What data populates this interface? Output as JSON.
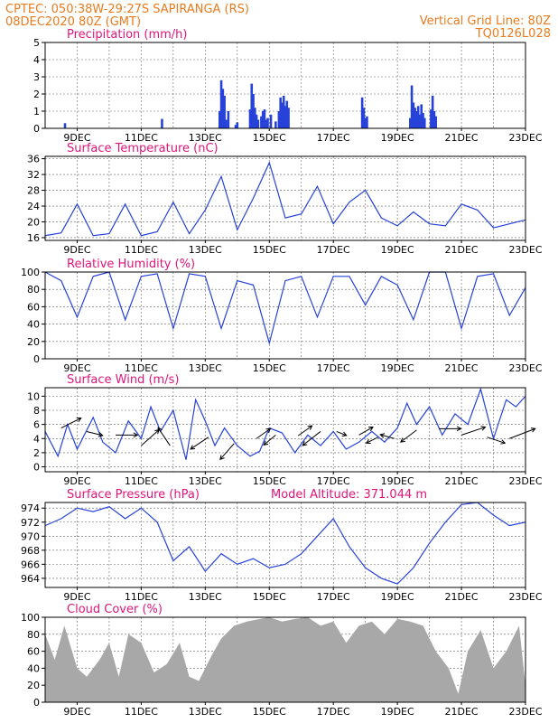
{
  "header": {
    "line1_left": "CPTEC:   050:38W-29:27S  SAPIRANGA (RS)",
    "line2_left": "08DEC2020 80Z (GMT)",
    "line1_right": "Vertical Grid Line: 80Z",
    "line2_right": "TQ0126L028"
  },
  "colors": {
    "header": "#e87b1e",
    "panel_title": "#e0157a",
    "series": "#2742d9",
    "cloud_fill": "#a8a8a8",
    "wind_arrow": "#000000"
  },
  "x_axis": {
    "date_labels": [
      "9DEC",
      "11DEC",
      "13DEC",
      "15DEC",
      "17DEC",
      "19DEC",
      "21DEC",
      "23DEC"
    ],
    "label_day_index": [
      1,
      3,
      5,
      7,
      9,
      11,
      13,
      15
    ],
    "day_range": [
      0.0,
      15.0
    ]
  },
  "chart_data": [
    {
      "id": "precip",
      "type": "bar",
      "title": "Precipitation (mm/h)",
      "ylim": [
        0,
        5
      ],
      "yticks": [
        "0",
        "1",
        "2",
        "3",
        "4",
        "5"
      ],
      "grid": true,
      "bars": [
        [
          0.62,
          0.3
        ],
        [
          3.65,
          0.55
        ],
        [
          5.45,
          1.0
        ],
        [
          5.5,
          2.8
        ],
        [
          5.55,
          2.3
        ],
        [
          5.6,
          1.9
        ],
        [
          5.65,
          0.5
        ],
        [
          5.72,
          1.0
        ],
        [
          5.95,
          0.2
        ],
        [
          6.0,
          0.35
        ],
        [
          6.4,
          1.1
        ],
        [
          6.45,
          2.6
        ],
        [
          6.5,
          2.0
        ],
        [
          6.55,
          1.2
        ],
        [
          6.6,
          0.8
        ],
        [
          6.65,
          0.5
        ],
        [
          6.75,
          0.7
        ],
        [
          6.8,
          1.0
        ],
        [
          6.85,
          1.1
        ],
        [
          6.9,
          0.5
        ],
        [
          6.95,
          0.6
        ],
        [
          7.05,
          0.8
        ],
        [
          7.2,
          0.4
        ],
        [
          7.3,
          1.0
        ],
        [
          7.35,
          1.8
        ],
        [
          7.4,
          1.5
        ],
        [
          7.45,
          1.9
        ],
        [
          7.5,
          1.3
        ],
        [
          7.55,
          1.6
        ],
        [
          7.6,
          1.2
        ],
        [
          9.9,
          1.8
        ],
        [
          9.95,
          1.2
        ],
        [
          10.0,
          0.6
        ],
        [
          10.05,
          0.7
        ],
        [
          11.4,
          0.6
        ],
        [
          11.45,
          2.5
        ],
        [
          11.5,
          1.5
        ],
        [
          11.55,
          1.2
        ],
        [
          11.6,
          1.0
        ],
        [
          11.65,
          1.3
        ],
        [
          11.7,
          0.8
        ],
        [
          11.75,
          1.4
        ],
        [
          11.8,
          0.9
        ],
        [
          11.85,
          0.6
        ],
        [
          12.05,
          1.1
        ],
        [
          12.1,
          1.9
        ],
        [
          12.15,
          1.0
        ],
        [
          12.2,
          0.7
        ]
      ]
    },
    {
      "id": "temp",
      "type": "line",
      "title": "Surface Temperature (nC)",
      "ylim": [
        15.3,
        36.6
      ],
      "yticks": [
        "16",
        "20",
        "24",
        "28",
        "32",
        "36"
      ],
      "grid": true,
      "points": [
        [
          0.0,
          16.5
        ],
        [
          0.5,
          17.2
        ],
        [
          1.0,
          24.5
        ],
        [
          1.5,
          16.5
        ],
        [
          2.0,
          17.0
        ],
        [
          2.5,
          24.5
        ],
        [
          3.0,
          16.5
        ],
        [
          3.5,
          17.5
        ],
        [
          4.0,
          25.0
        ],
        [
          4.5,
          17.0
        ],
        [
          5.0,
          23.0
        ],
        [
          5.5,
          31.5
        ],
        [
          6.0,
          18.0
        ],
        [
          6.5,
          26.0
        ],
        [
          7.0,
          35.0
        ],
        [
          7.5,
          21.0
        ],
        [
          8.0,
          22.0
        ],
        [
          8.5,
          29.0
        ],
        [
          9.0,
          19.5
        ],
        [
          9.5,
          25.0
        ],
        [
          10.0,
          28.0
        ],
        [
          10.5,
          21.0
        ],
        [
          11.0,
          19.0
        ],
        [
          11.5,
          22.5
        ],
        [
          12.0,
          19.5
        ],
        [
          12.5,
          19.0
        ],
        [
          13.0,
          24.5
        ],
        [
          13.5,
          23.0
        ],
        [
          14.0,
          18.5
        ],
        [
          14.5,
          19.5
        ],
        [
          15.0,
          20.5
        ]
      ]
    },
    {
      "id": "humidity",
      "type": "line",
      "title": "Relative Humidity (%)",
      "ylim": [
        0,
        100
      ],
      "yticks": [
        "0",
        "20",
        "40",
        "60",
        "80",
        "100"
      ],
      "grid": true,
      "points": [
        [
          0.0,
          100
        ],
        [
          0.5,
          90
        ],
        [
          1.0,
          48
        ],
        [
          1.5,
          95
        ],
        [
          2.0,
          100
        ],
        [
          2.5,
          45
        ],
        [
          3.0,
          95
        ],
        [
          3.5,
          98
        ],
        [
          4.0,
          35
        ],
        [
          4.5,
          98
        ],
        [
          5.0,
          95
        ],
        [
          5.5,
          35
        ],
        [
          6.0,
          90
        ],
        [
          6.5,
          85
        ],
        [
          7.0,
          18
        ],
        [
          7.5,
          90
        ],
        [
          8.0,
          95
        ],
        [
          8.5,
          48
        ],
        [
          9.0,
          95
        ],
        [
          9.5,
          95
        ],
        [
          10.0,
          62
        ],
        [
          10.5,
          95
        ],
        [
          11.0,
          85
        ],
        [
          11.5,
          45
        ],
        [
          12.0,
          100
        ],
        [
          12.5,
          100
        ],
        [
          13.0,
          35
        ],
        [
          13.5,
          95
        ],
        [
          14.0,
          98
        ],
        [
          14.5,
          50
        ],
        [
          15.0,
          82
        ]
      ]
    },
    {
      "id": "wind",
      "type": "line",
      "title": "Surface Wind (m/s)",
      "ylim": [
        -0.7,
        11.2
      ],
      "yticks": [
        "0",
        "2",
        "4",
        "6",
        "8",
        "10"
      ],
      "grid": true,
      "points": [
        [
          0.0,
          5.0
        ],
        [
          0.4,
          1.5
        ],
        [
          0.7,
          6.0
        ],
        [
          1.0,
          2.5
        ],
        [
          1.5,
          7.0
        ],
        [
          1.8,
          3.5
        ],
        [
          2.2,
          2.0
        ],
        [
          2.6,
          6.5
        ],
        [
          3.0,
          4.0
        ],
        [
          3.3,
          8.5
        ],
        [
          3.6,
          5.0
        ],
        [
          4.0,
          8.0
        ],
        [
          4.4,
          1.0
        ],
        [
          4.7,
          9.5
        ],
        [
          5.0,
          6.5
        ],
        [
          5.3,
          3.0
        ],
        [
          5.6,
          5.5
        ],
        [
          6.0,
          3.0
        ],
        [
          6.4,
          1.5
        ],
        [
          6.7,
          2.2
        ],
        [
          7.0,
          5.5
        ],
        [
          7.4,
          4.8
        ],
        [
          7.8,
          2.0
        ],
        [
          8.2,
          4.5
        ],
        [
          8.6,
          3.0
        ],
        [
          9.0,
          5.0
        ],
        [
          9.4,
          2.5
        ],
        [
          9.8,
          3.5
        ],
        [
          10.2,
          5.0
        ],
        [
          10.6,
          3.5
        ],
        [
          11.0,
          5.5
        ],
        [
          11.3,
          9.0
        ],
        [
          11.6,
          6.0
        ],
        [
          12.0,
          8.5
        ],
        [
          12.4,
          4.5
        ],
        [
          12.8,
          7.5
        ],
        [
          13.2,
          6.0
        ],
        [
          13.6,
          11.0
        ],
        [
          14.0,
          4.0
        ],
        [
          14.4,
          9.5
        ],
        [
          14.7,
          8.5
        ],
        [
          15.0,
          10.0
        ]
      ],
      "arrows": [
        [
          0.5,
          5.5,
          1.0,
          0.5
        ],
        [
          1.3,
          5.0,
          0.8,
          -0.2
        ],
        [
          2.2,
          4.5,
          1.1,
          0.0
        ],
        [
          3.0,
          3.0,
          0.9,
          0.8
        ],
        [
          3.9,
          3.0,
          -0.6,
          0.9
        ],
        [
          5.1,
          4.2,
          -0.9,
          -0.6
        ],
        [
          5.9,
          3.3,
          -0.7,
          -0.8
        ],
        [
          6.6,
          4.0,
          0.7,
          0.5
        ],
        [
          7.2,
          4.5,
          -0.6,
          -0.5
        ],
        [
          7.9,
          4.4,
          0.7,
          0.5
        ],
        [
          8.6,
          5.0,
          -0.9,
          -0.7
        ],
        [
          9.1,
          5.0,
          0.5,
          -0.2
        ],
        [
          9.8,
          4.5,
          0.7,
          0.4
        ],
        [
          10.4,
          4.2,
          -0.6,
          -0.3
        ],
        [
          10.9,
          4.0,
          -0.7,
          0.2
        ],
        [
          11.6,
          5.2,
          -0.8,
          -0.6
        ],
        [
          12.3,
          5.4,
          1.1,
          0.0
        ],
        [
          13.0,
          4.5,
          1.2,
          0.4
        ],
        [
          13.8,
          4.2,
          0.9,
          -0.3
        ],
        [
          14.5,
          4.0,
          1.3,
          0.5
        ]
      ]
    },
    {
      "id": "pressure",
      "type": "line",
      "title": "Surface Pressure (hPa)",
      "subtitle": "Model Altitude: 371.044 m",
      "ylim": [
        962.7,
        974.8
      ],
      "yticks": [
        "964",
        "966",
        "968",
        "970",
        "972",
        "974"
      ],
      "grid": true,
      "points": [
        [
          0.0,
          971.5
        ],
        [
          0.5,
          972.5
        ],
        [
          1.0,
          974.0
        ],
        [
          1.5,
          973.5
        ],
        [
          2.0,
          974.2
        ],
        [
          2.5,
          972.5
        ],
        [
          3.0,
          974.0
        ],
        [
          3.5,
          972.0
        ],
        [
          4.0,
          966.5
        ],
        [
          4.5,
          968.5
        ],
        [
          5.0,
          965.0
        ],
        [
          5.5,
          967.5
        ],
        [
          6.0,
          966.0
        ],
        [
          6.5,
          966.8
        ],
        [
          7.0,
          965.5
        ],
        [
          7.5,
          966.0
        ],
        [
          8.0,
          967.5
        ],
        [
          8.5,
          970.0
        ],
        [
          9.0,
          972.5
        ],
        [
          9.5,
          968.5
        ],
        [
          10.0,
          965.5
        ],
        [
          10.5,
          964.0
        ],
        [
          11.0,
          963.2
        ],
        [
          11.5,
          965.5
        ],
        [
          12.0,
          969.0
        ],
        [
          12.5,
          972.0
        ],
        [
          13.0,
          974.5
        ],
        [
          13.5,
          974.8
        ],
        [
          14.0,
          973.0
        ],
        [
          14.5,
          971.5
        ],
        [
          15.0,
          972.0
        ]
      ]
    },
    {
      "id": "cloud",
      "type": "area",
      "title": "Cloud Cover (%)",
      "ylim": [
        0,
        100
      ],
      "yticks": [
        "0",
        "20",
        "40",
        "60",
        "80",
        "100"
      ],
      "grid": true,
      "points": [
        [
          0.0,
          80
        ],
        [
          0.3,
          50
        ],
        [
          0.6,
          90
        ],
        [
          1.0,
          40
        ],
        [
          1.3,
          30
        ],
        [
          1.7,
          50
        ],
        [
          2.0,
          70
        ],
        [
          2.3,
          30
        ],
        [
          2.6,
          80
        ],
        [
          3.0,
          70
        ],
        [
          3.4,
          35
        ],
        [
          3.8,
          45
        ],
        [
          4.2,
          70
        ],
        [
          4.5,
          30
        ],
        [
          4.8,
          25
        ],
        [
          5.2,
          55
        ],
        [
          5.5,
          75
        ],
        [
          5.9,
          90
        ],
        [
          6.3,
          95
        ],
        [
          6.7,
          98
        ],
        [
          7.0,
          100
        ],
        [
          7.4,
          95
        ],
        [
          7.8,
          98
        ],
        [
          8.2,
          100
        ],
        [
          8.6,
          90
        ],
        [
          9.0,
          95
        ],
        [
          9.4,
          70
        ],
        [
          9.8,
          90
        ],
        [
          10.2,
          95
        ],
        [
          10.6,
          80
        ],
        [
          11.0,
          98
        ],
        [
          11.4,
          95
        ],
        [
          11.8,
          90
        ],
        [
          12.2,
          60
        ],
        [
          12.6,
          40
        ],
        [
          12.9,
          10
        ],
        [
          13.2,
          60
        ],
        [
          13.6,
          85
        ],
        [
          14.0,
          40
        ],
        [
          14.4,
          60
        ],
        [
          14.8,
          90
        ],
        [
          15.0,
          20
        ]
      ]
    }
  ]
}
